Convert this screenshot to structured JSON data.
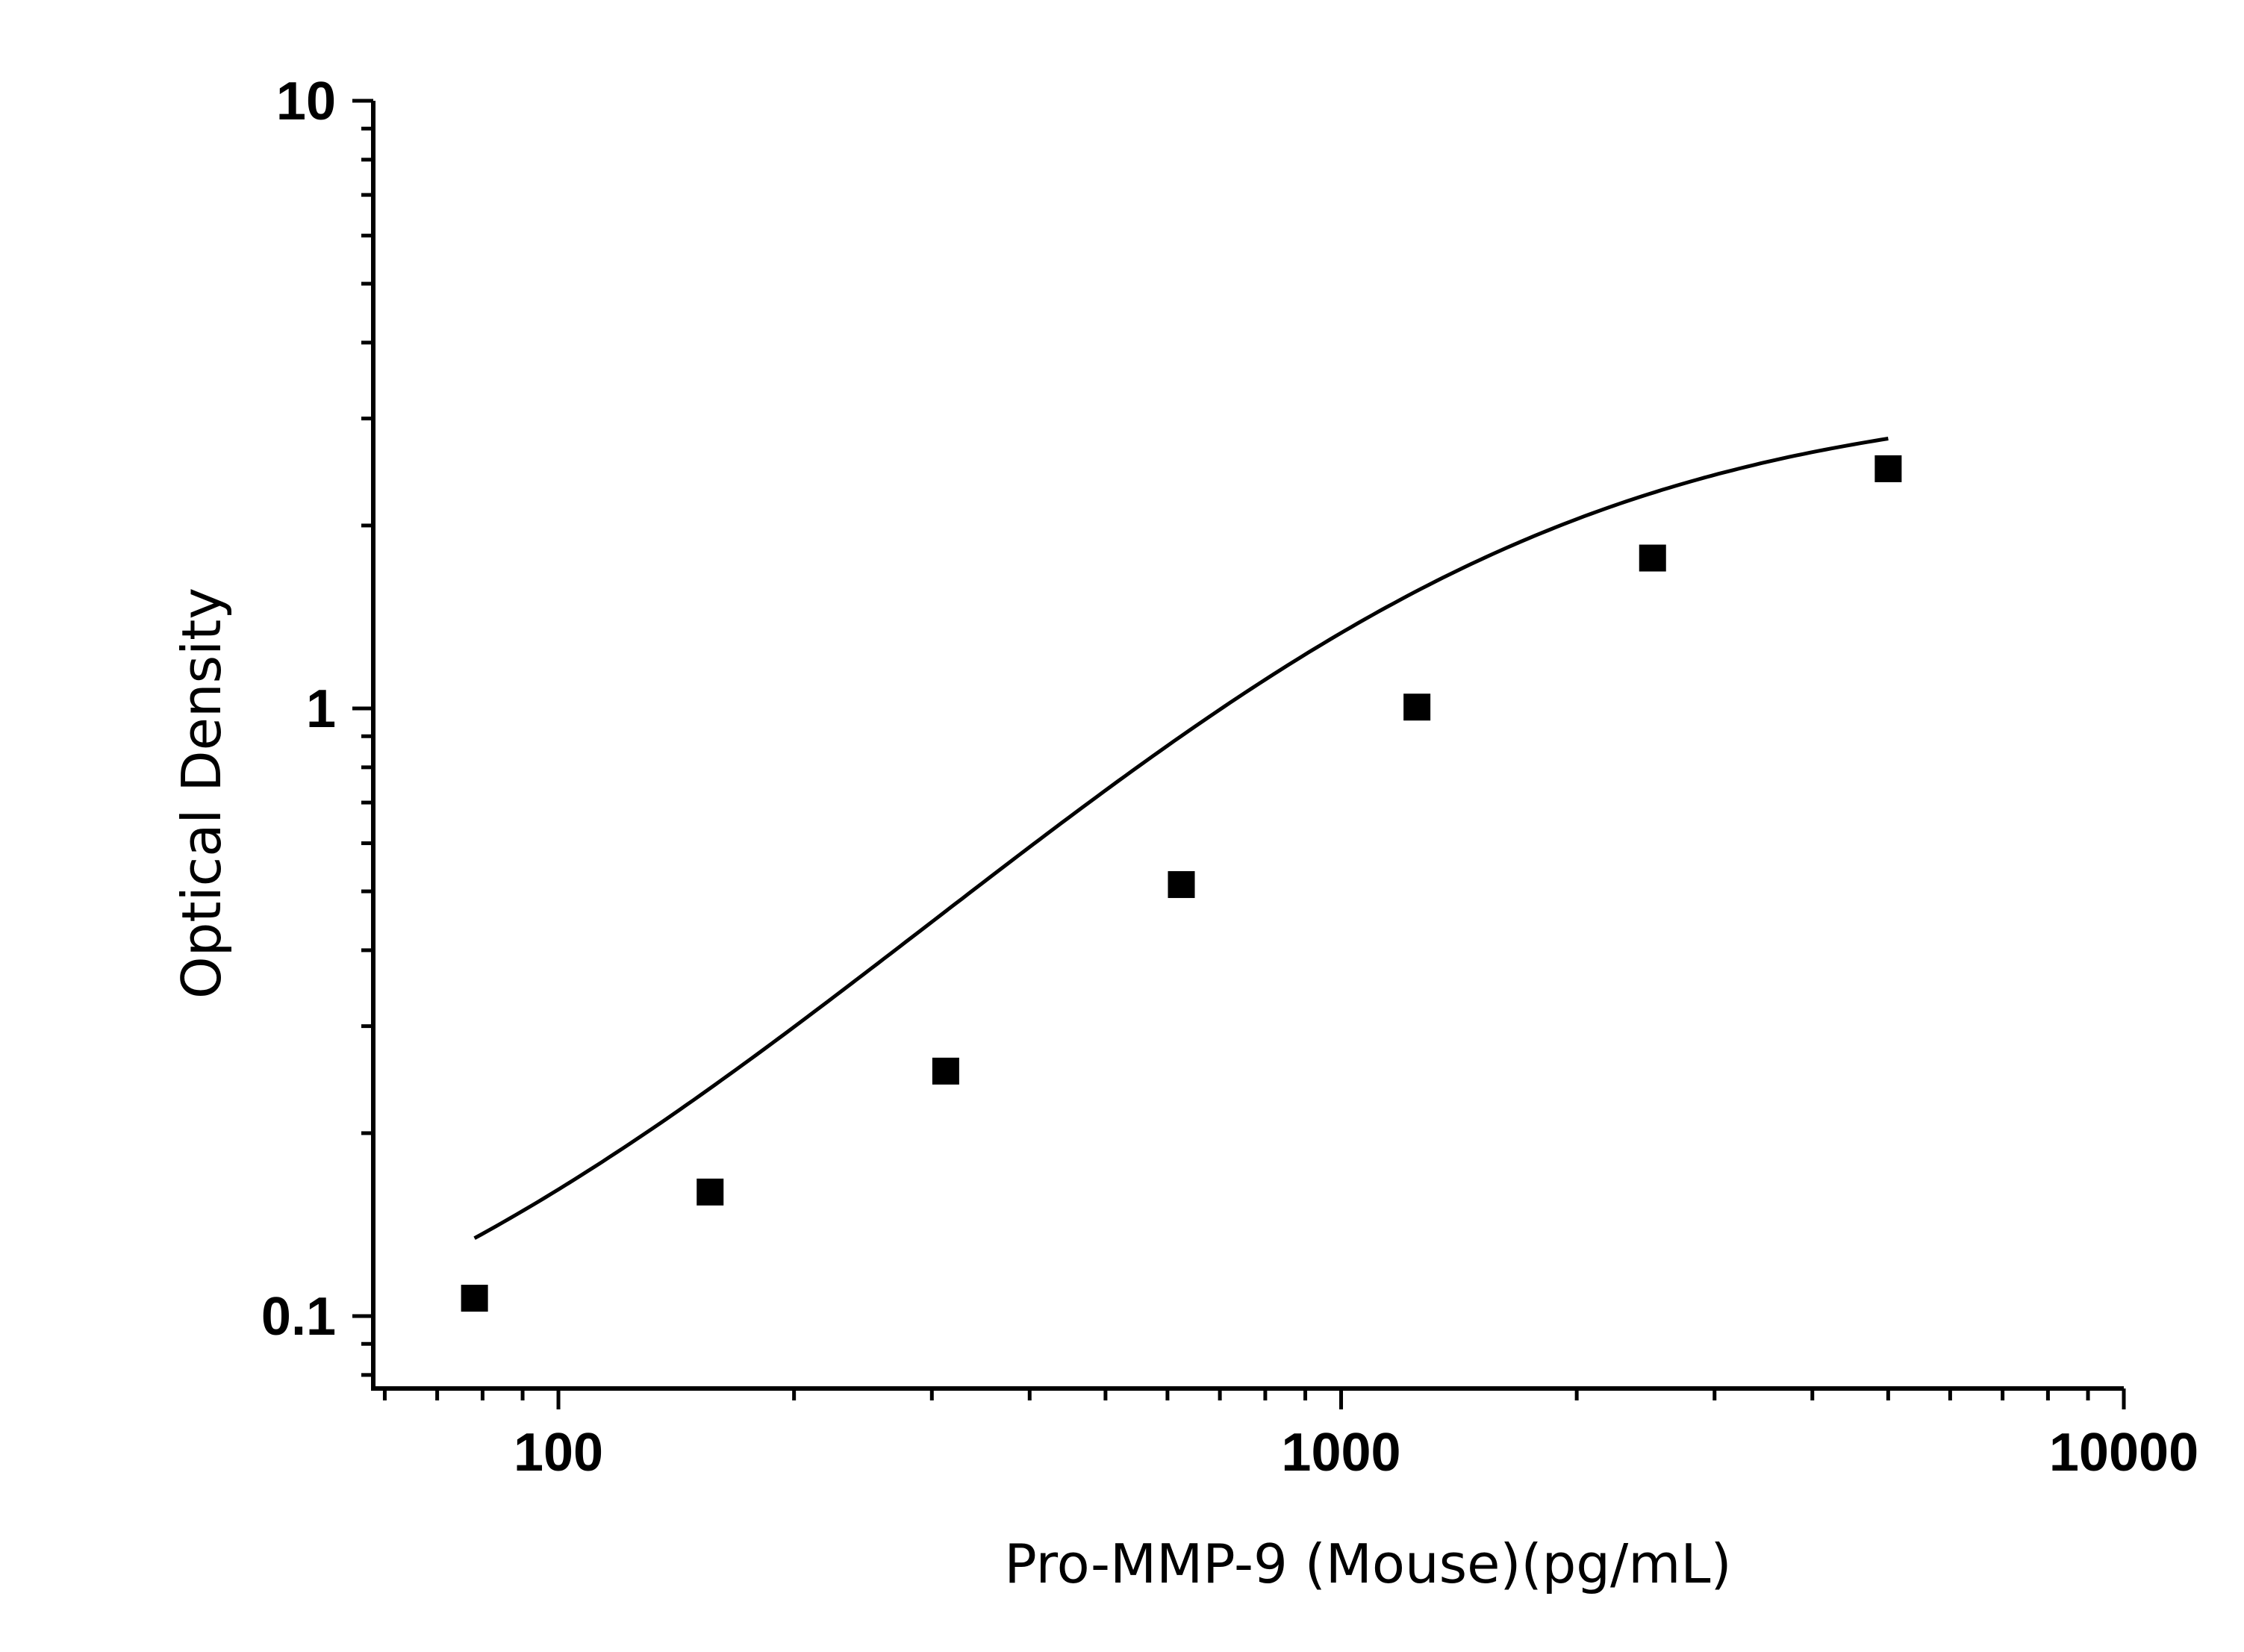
{
  "chart_data": {
    "type": "scatter",
    "title": "",
    "xlabel": "Pro-MMP-9 (Mouse)(pg/mL)",
    "ylabel": "Optical Density",
    "x_scale": "log",
    "y_scale": "log",
    "xlim": [
      58,
      10000
    ],
    "ylim": [
      0.076,
      10
    ],
    "x_ticks": [
      100,
      1000,
      10000
    ],
    "x_tick_labels": [
      "100",
      "1000",
      "10000"
    ],
    "y_ticks": [
      0.1,
      1,
      10
    ],
    "y_tick_labels": [
      "0.1",
      "1",
      "10"
    ],
    "grid": false,
    "legend": "none",
    "colors": {
      "marker": "#000000",
      "curve": "#000000",
      "axis": "#000000"
    },
    "series": [
      {
        "marker": "square",
        "x": [
          78.125,
          156.25,
          312.5,
          625,
          1250,
          2500,
          5000
        ],
        "y": [
          0.107,
          0.16,
          0.253,
          0.513,
          1.005,
          1.768,
          2.48
        ]
      }
    ],
    "fit_curve": {
      "model": "4PL",
      "x_range": [
        78.125,
        5000
      ],
      "A": 0.06,
      "D": 3.3,
      "C": 1400,
      "B": 1.3
    }
  }
}
